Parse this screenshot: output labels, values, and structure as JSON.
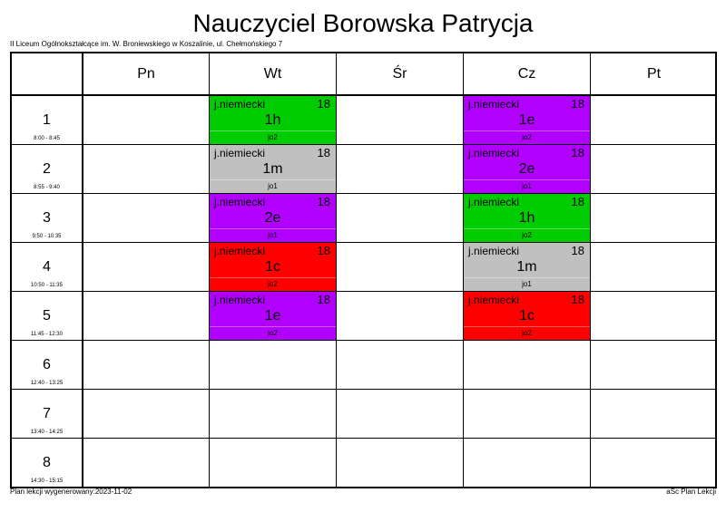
{
  "title": "Nauczyciel Borowska Patrycja",
  "school": "II Liceum Ogólnokształcące im. W. Broniewskiego w Koszalinie, ul. Chełmońskiego 7",
  "days": [
    "Pn",
    "Wt",
    "Śr",
    "Cz",
    "Pt"
  ],
  "periods": [
    {
      "num": "1",
      "time": "8:00 - 8:45"
    },
    {
      "num": "2",
      "time": "8:55 - 9:40"
    },
    {
      "num": "3",
      "time": "9:50 - 10:35"
    },
    {
      "num": "4",
      "time": "10:50 - 11:35"
    },
    {
      "num": "5",
      "time": "11:45 - 12:30"
    },
    {
      "num": "6",
      "time": "12:40 - 13:25"
    },
    {
      "num": "7",
      "time": "13:40 - 14:25"
    },
    {
      "num": "8",
      "time": "14:30 - 15:15"
    }
  ],
  "lessons": {
    "wt_1": {
      "subject": "j.niemiecki",
      "room": "18",
      "class": "1h",
      "group": "jo2",
      "color": "#00cc00"
    },
    "wt_2": {
      "subject": "j.niemiecki",
      "room": "18",
      "class": "1m",
      "group": "jo1",
      "color": "#c0c0c0"
    },
    "wt_3": {
      "subject": "j.niemiecki",
      "room": "18",
      "class": "2e",
      "group": "jo1",
      "color": "#b200ff"
    },
    "wt_4": {
      "subject": "j.niemiecki",
      "room": "18",
      "class": "1c",
      "group": "jo2",
      "color": "#ff0000"
    },
    "wt_5": {
      "subject": "j.niemiecki",
      "room": "18",
      "class": "1e",
      "group": "jo2",
      "color": "#b200ff"
    },
    "cz_1": {
      "subject": "j.niemiecki",
      "room": "18",
      "class": "1e",
      "group": "jo2",
      "color": "#b200ff"
    },
    "cz_2": {
      "subject": "j.niemiecki",
      "room": "18",
      "class": "2e",
      "group": "jo1",
      "color": "#b200ff"
    },
    "cz_3": {
      "subject": "j.niemiecki",
      "room": "18",
      "class": "1h",
      "group": "jo2",
      "color": "#00cc00"
    },
    "cz_4": {
      "subject": "j.niemiecki",
      "room": "18",
      "class": "1m",
      "group": "jo1",
      "color": "#c0c0c0"
    },
    "cz_5": {
      "subject": "j.niemiecki",
      "room": "18",
      "class": "1c",
      "group": "jo2",
      "color": "#ff0000"
    }
  },
  "footer": {
    "generated": "Plan lekcji wygenerowany:2023-11-02",
    "software": "aSc Plan Lekcji"
  }
}
